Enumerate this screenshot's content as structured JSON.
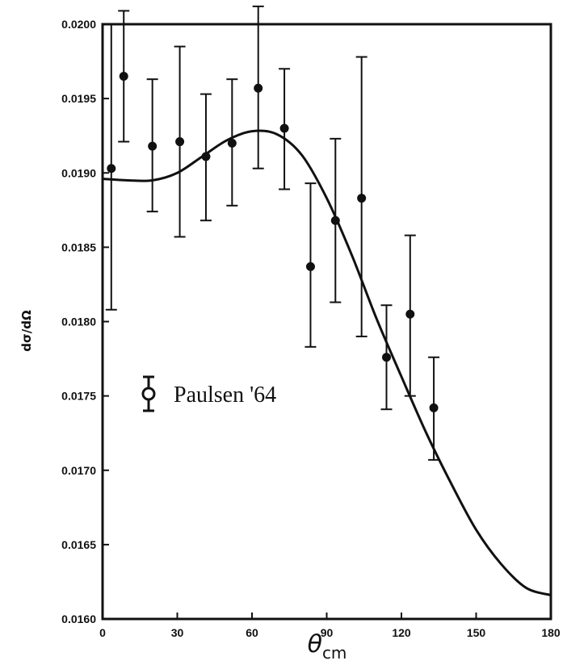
{
  "chart_data": {
    "type": "scatter",
    "title": "",
    "xlabel": "θcm",
    "xlabel_main": "θ",
    "xlabel_sub": "cm",
    "ylabel": "dσ/dΩ",
    "xlim": [
      0,
      180
    ],
    "ylim": [
      0.016,
      0.02
    ],
    "x_ticks": [
      0,
      30,
      60,
      90,
      120,
      150,
      180
    ],
    "x_tick_labels": [
      "0",
      "30",
      "60",
      "90",
      "120",
      "150",
      "180"
    ],
    "y_ticks": [
      0.016,
      0.0165,
      0.017,
      0.0175,
      0.018,
      0.0185,
      0.019,
      0.0195,
      0.02
    ],
    "y_tick_labels": [
      "0.0160",
      "0.0165",
      "0.0170",
      "0.0175",
      "0.0180",
      "0.0185",
      "0.0190",
      "0.0195",
      "0.0200"
    ],
    "grid": false,
    "legend_position": "left-middle",
    "series": [
      {
        "name": "Paulsen '64",
        "kind": "points-with-errorbars",
        "points": [
          {
            "x": 3.5,
            "y": 0.01903,
            "err_low": 0.01808,
            "err_high": 0.02
          },
          {
            "x": 8.5,
            "y": 0.01965,
            "err_low": 0.01921,
            "err_high": 0.02009
          },
          {
            "x": 20,
            "y": 0.01918,
            "err_low": 0.01874,
            "err_high": 0.01963
          },
          {
            "x": 31,
            "y": 0.01921,
            "err_low": 0.01857,
            "err_high": 0.01985
          },
          {
            "x": 41.5,
            "y": 0.01911,
            "err_low": 0.01868,
            "err_high": 0.01953
          },
          {
            "x": 52,
            "y": 0.0192,
            "err_low": 0.01878,
            "err_high": 0.01963
          },
          {
            "x": 62.5,
            "y": 0.01957,
            "err_low": 0.01903,
            "err_high": 0.02012
          },
          {
            "x": 73,
            "y": 0.0193,
            "err_low": 0.01889,
            "err_high": 0.0197
          },
          {
            "x": 83.5,
            "y": 0.01837,
            "err_low": 0.01783,
            "err_high": 0.01893
          },
          {
            "x": 93.5,
            "y": 0.01868,
            "err_low": 0.01813,
            "err_high": 0.01923
          },
          {
            "x": 104,
            "y": 0.01883,
            "err_low": 0.0179,
            "err_high": 0.01978
          },
          {
            "x": 114,
            "y": 0.01776,
            "err_low": 0.01741,
            "err_high": 0.01811
          },
          {
            "x": 123.5,
            "y": 0.01805,
            "err_low": 0.0175,
            "err_high": 0.01858
          },
          {
            "x": 133,
            "y": 0.01742,
            "err_low": 0.01707,
            "err_high": 0.01776
          }
        ]
      },
      {
        "kind": "line",
        "x": [
          0,
          10,
          20,
          30,
          40,
          50,
          60,
          70,
          80,
          90,
          100,
          110,
          120,
          130,
          140,
          150,
          160,
          170,
          180
        ],
        "y": [
          0.01896,
          0.01895,
          0.01895,
          0.019,
          0.01911,
          0.01922,
          0.01928,
          0.01926,
          0.01912,
          0.01883,
          0.01845,
          0.01802,
          0.01763,
          0.01725,
          0.01691,
          0.0166,
          0.01637,
          0.01621,
          0.01616
        ]
      }
    ]
  }
}
